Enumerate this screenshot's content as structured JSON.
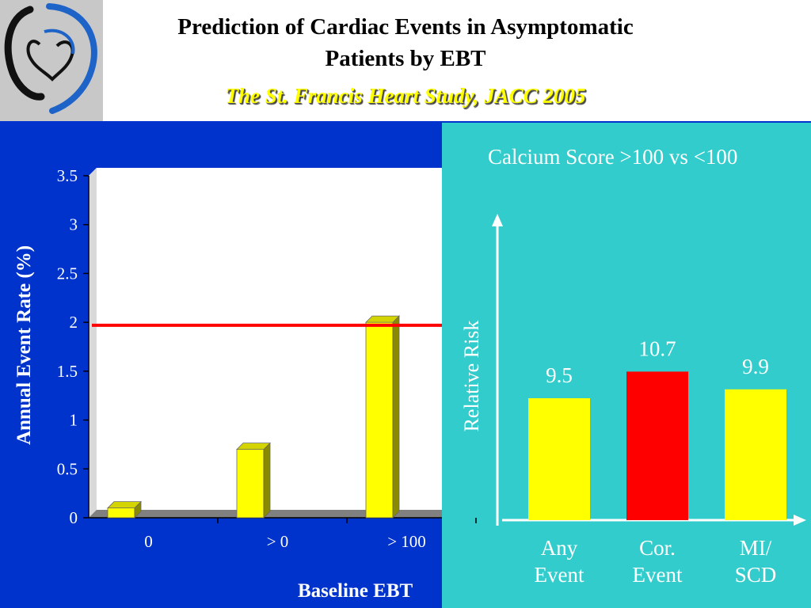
{
  "header": {
    "title_line1": "Prediction of Cardiac Events in Asymptomatic",
    "title_line2": "Patients by EBT",
    "subtitle": "The St. Francis Heart Study, JACC 2005"
  },
  "colors": {
    "left_bg": "#0033cc",
    "right_bg": "#33cccc",
    "bar_yellow": "#ffff00",
    "bar_red": "#ff0000",
    "threshold_line": "#ff0000"
  },
  "chart_data": [
    {
      "type": "bar",
      "categories": [
        "0",
        "> 0",
        "> 100",
        ""
      ],
      "values": [
        0.1,
        0.7,
        2.0,
        null
      ],
      "xlabel": "Baseline EBT",
      "ylabel": "Annual Event Rate (%)",
      "ylim": [
        0,
        3.5
      ],
      "yticks": [
        "0",
        "0.5",
        "1",
        "1.5",
        "2",
        "2.5",
        "3",
        "3.5"
      ],
      "reference_line": 1.97,
      "grid": false
    },
    {
      "type": "bar",
      "title": "Calcium Score >100 vs <100",
      "categories": [
        "Any Event",
        "Cor. Event",
        "MI/ SCD"
      ],
      "category_lines": [
        [
          "Any",
          "Event"
        ],
        [
          "Cor.",
          "Event"
        ],
        [
          "MI/",
          "SCD"
        ]
      ],
      "values": [
        9.5,
        10.7,
        9.9
      ],
      "data_labels": [
        "9.5",
        "10.7",
        "9.9"
      ],
      "bar_colors": [
        "#ffff00",
        "#ff0000",
        "#ffff00"
      ],
      "ylabel": "Relative Risk",
      "grid": false
    }
  ]
}
